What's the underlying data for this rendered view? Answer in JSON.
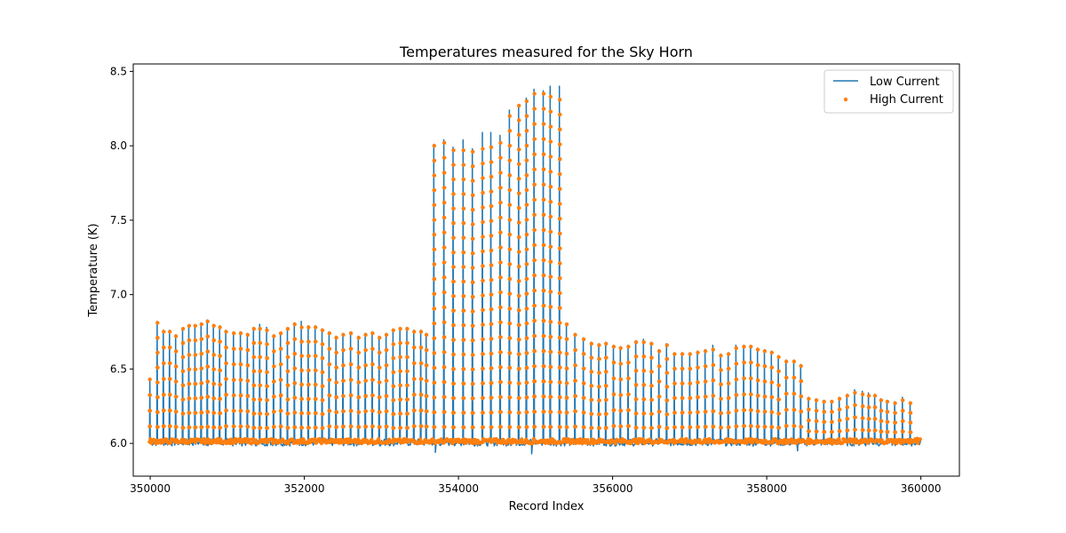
{
  "chart_data": {
    "type": "line",
    "title": "Temperatures measured for the Sky Horn",
    "xlabel": "Record Index",
    "ylabel": "Temperature (K)",
    "xlim": [
      349780,
      360500
    ],
    "ylim": [
      5.78,
      8.55
    ],
    "xticks": [
      350000,
      352000,
      354000,
      356000,
      358000,
      360000
    ],
    "xtick_labels": [
      "350000",
      "352000",
      "354000",
      "356000",
      "358000",
      "360000"
    ],
    "yticks": [
      6.0,
      6.5,
      7.0,
      7.5,
      8.0,
      8.5
    ],
    "ytick_labels": [
      "6.0",
      "6.5",
      "7.0",
      "7.5",
      "8.0",
      "8.5"
    ],
    "grid": false,
    "legend_position": "upper right",
    "baseline": 6.01,
    "series": [
      {
        "name": "Low Current",
        "style": "line",
        "color": "#1f77b4",
        "pulses_x": [
          349995,
          350090,
          350170,
          350250,
          350330,
          350420,
          350500,
          350580,
          350660,
          350740,
          350820,
          350900,
          350980,
          351080,
          351170,
          351260,
          351340,
          351420,
          351510,
          351600,
          351690,
          351780,
          351870,
          351960,
          352050,
          352140,
          352230,
          352320,
          352410,
          352500,
          352600,
          352700,
          352790,
          352880,
          352970,
          353060,
          353150,
          353240,
          353330,
          353420,
          353510,
          353580,
          353680,
          353810,
          353930,
          354060,
          354180,
          354310,
          354420,
          354540,
          354660,
          354780,
          354880,
          354980,
          355100,
          355190,
          355310,
          355400,
          355510,
          355620,
          355720,
          355820,
          355910,
          356010,
          356100,
          356200,
          356300,
          356400,
          356500,
          356600,
          356700,
          356800,
          356900,
          357000,
          357100,
          357200,
          357300,
          357400,
          357500,
          357600,
          357700,
          357790,
          357880,
          357970,
          358060,
          358150,
          358250,
          358350,
          358440,
          358540,
          358640,
          358740,
          358840,
          358940,
          359040,
          359140,
          359240,
          359320,
          359400,
          359480,
          359560,
          359660,
          359760,
          359860,
          359950
        ],
        "pulses_peak": [
          6.43,
          6.82,
          6.76,
          6.76,
          6.73,
          6.77,
          6.79,
          6.79,
          6.81,
          6.83,
          6.8,
          6.79,
          6.76,
          6.75,
          6.75,
          6.74,
          6.78,
          6.8,
          6.78,
          6.73,
          6.74,
          6.77,
          6.81,
          6.82,
          6.79,
          6.79,
          6.77,
          6.75,
          6.72,
          6.74,
          6.75,
          6.72,
          6.74,
          6.75,
          6.72,
          6.74,
          6.77,
          6.78,
          6.78,
          6.76,
          6.76,
          6.74,
          8.01,
          8.04,
          7.99,
          8.04,
          7.98,
          8.09,
          8.09,
          8.07,
          8.24,
          8.27,
          8.32,
          8.38,
          8.37,
          8.4,
          8.4,
          6.8,
          6.74,
          6.71,
          6.68,
          6.67,
          6.68,
          6.66,
          6.65,
          6.66,
          6.69,
          6.7,
          6.68,
          6.63,
          6.67,
          6.61,
          6.61,
          6.61,
          6.62,
          6.63,
          6.66,
          6.6,
          6.61,
          6.66,
          6.66,
          6.66,
          6.64,
          6.63,
          6.62,
          6.59,
          6.56,
          6.56,
          6.53,
          6.31,
          6.3,
          6.29,
          6.29,
          6.31,
          6.33,
          6.36,
          6.35,
          6.34,
          6.33,
          6.3,
          6.29,
          6.28,
          6.31,
          6.28,
          6.04
        ],
        "dips_x": [
          352500,
          353700,
          354950,
          357100,
          357200,
          358400
        ],
        "dips_y": [
          5.96,
          5.94,
          5.93,
          5.96,
          5.91,
          5.95
        ]
      },
      {
        "name": "High Current",
        "style": "scatter",
        "color": "#ff7f0e",
        "pulses_x": [
          349995,
          350095,
          350175,
          350255,
          350335,
          350425,
          350505,
          350585,
          350665,
          350745,
          350825,
          350905,
          350985,
          351085,
          351175,
          351265,
          351345,
          351425,
          351515,
          351605,
          351695,
          351785,
          351875,
          351965,
          352055,
          352145,
          352235,
          352325,
          352415,
          352505,
          352605,
          352705,
          352795,
          352885,
          352975,
          353065,
          353155,
          353245,
          353335,
          353425,
          353515,
          353585,
          353685,
          353815,
          353935,
          354065,
          354185,
          354315,
          354425,
          354545,
          354665,
          354785,
          354885,
          354985,
          355105,
          355195,
          355315,
          355405,
          355515,
          355625,
          355725,
          355825,
          355915,
          356015,
          356105,
          356205,
          356305,
          356405,
          356505,
          356605,
          356705,
          356805,
          356905,
          357005,
          357105,
          357205,
          357305,
          357405,
          357505,
          357605,
          357705,
          357795,
          357885,
          357975,
          358065,
          358155,
          358255,
          358355,
          358445,
          358545,
          358645,
          358745,
          358845,
          358945,
          359045,
          359145,
          359245,
          359325,
          359405,
          359485,
          359565,
          359665,
          359765,
          359865,
          359955
        ],
        "pulses_peak": [
          6.43,
          6.81,
          6.75,
          6.75,
          6.72,
          6.77,
          6.79,
          6.79,
          6.8,
          6.82,
          6.79,
          6.78,
          6.75,
          6.74,
          6.74,
          6.73,
          6.77,
          6.77,
          6.76,
          6.72,
          6.74,
          6.77,
          6.8,
          6.78,
          6.78,
          6.78,
          6.76,
          6.74,
          6.71,
          6.73,
          6.74,
          6.71,
          6.73,
          6.74,
          6.71,
          6.73,
          6.76,
          6.77,
          6.77,
          6.75,
          6.75,
          6.73,
          8.0,
          8.02,
          7.97,
          7.97,
          7.96,
          7.98,
          7.99,
          8.02,
          8.2,
          8.27,
          8.3,
          8.35,
          8.35,
          8.33,
          8.31,
          6.8,
          6.73,
          6.7,
          6.67,
          6.66,
          6.67,
          6.65,
          6.64,
          6.65,
          6.68,
          6.68,
          6.67,
          6.62,
          6.66,
          6.6,
          6.6,
          6.6,
          6.61,
          6.62,
          6.63,
          6.59,
          6.6,
          6.64,
          6.65,
          6.65,
          6.63,
          6.62,
          6.61,
          6.58,
          6.55,
          6.55,
          6.52,
          6.3,
          6.29,
          6.28,
          6.28,
          6.3,
          6.32,
          6.34,
          6.33,
          6.32,
          6.32,
          6.29,
          6.28,
          6.27,
          6.29,
          6.27,
          6.03
        ]
      }
    ]
  }
}
